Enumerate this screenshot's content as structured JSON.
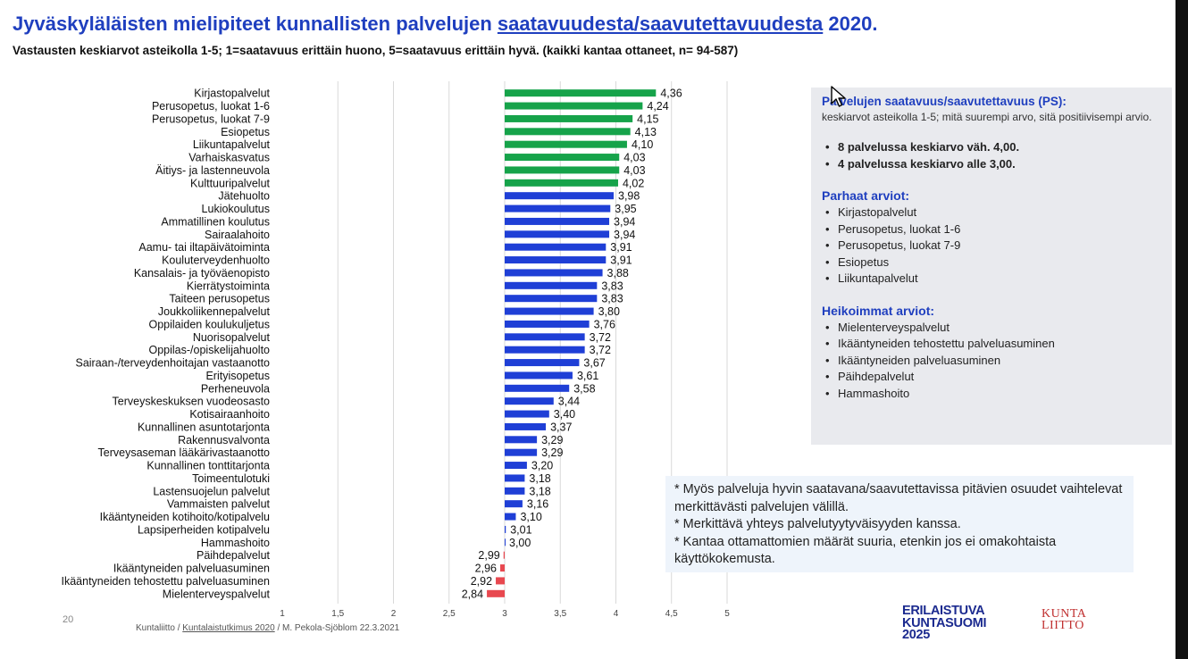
{
  "header": {
    "title_pre": "Jyväskyläläisten mielipiteet kunnallisten palvelujen ",
    "title_ul": "saatavuudesta/saavutettavuudesta",
    "title_post": " 2020.",
    "subtitle": "Vastausten keskiarvot asteikolla 1-5; 1=saatavuus erittäin huono, 5=saatavuus erittäin hyvä. (kaikki kantaa ottaneet, n= 94-587)"
  },
  "colors": {
    "green": "#16a34a",
    "blue": "#1f3fd6",
    "red": "#e8484f",
    "title": "#1f3fbf"
  },
  "chart_data": {
    "type": "bar",
    "orientation": "horizontal",
    "xlim": [
      1,
      5
    ],
    "xticks": [
      "1",
      "1,5",
      "2",
      "2,5",
      "3",
      "3,5",
      "4",
      "4,5",
      "5"
    ],
    "baseline": 3,
    "grid": true,
    "categories": [
      "Kirjastopalvelut",
      "Perusopetus, luokat 1-6",
      "Perusopetus, luokat 7-9",
      "Esiopetus",
      "Liikuntapalvelut",
      "Varhaiskasvatus",
      "Äitiys- ja lastenneuvola",
      "Kulttuuripalvelut",
      "Jätehuolto",
      "Lukiokoulutus",
      "Ammatillinen koulutus",
      "Sairaalahoito",
      "Aamu- tai iltapäivätoiminta",
      "Kouluterveydenhuolto",
      "Kansalais- ja työväenopisto",
      "Kierrätystoiminta",
      "Taiteen perusopetus",
      "Joukkoliikennepalvelut",
      "Oppilaiden koulukuljetus",
      "Nuorisopalvelut",
      "Oppilas-/opiskelijahuolto",
      "Sairaan-/terveydenhoitajan vastaanotto",
      "Erityisopetus",
      "Perheneuvola",
      "Terveyskeskuksen vuodeosasto",
      "Kotisairaanhoito",
      "Kunnallinen asuntotarjonta",
      "Rakennusvalvonta",
      "Terveysaseman lääkärivastaanotto",
      "Kunnallinen tonttitarjonta",
      "Toimeentulotuki",
      "Lastensuojelun palvelut",
      "Vammaisten palvelut",
      "Ikääntyneiden kotihoito/kotipalvelu",
      "Lapsiperheiden kotipalvelu",
      "Hammashoito",
      "Päihdepalvelut",
      "Ikääntyneiden palveluasuminen",
      "Ikääntyneiden tehostettu palveluasuminen",
      "Mielenterveyspalvelut"
    ],
    "values": [
      4.36,
      4.24,
      4.15,
      4.13,
      4.1,
      4.03,
      4.03,
      4.02,
      3.98,
      3.95,
      3.94,
      3.94,
      3.91,
      3.91,
      3.88,
      3.83,
      3.83,
      3.8,
      3.76,
      3.72,
      3.72,
      3.67,
      3.61,
      3.58,
      3.44,
      3.4,
      3.37,
      3.29,
      3.29,
      3.2,
      3.18,
      3.18,
      3.16,
      3.1,
      3.01,
      3.0,
      2.99,
      2.96,
      2.92,
      2.84
    ],
    "value_labels": [
      "4,36",
      "4,24",
      "4,15",
      "4,13",
      "4,10",
      "4,03",
      "4,03",
      "4,02",
      "3,98",
      "3,95",
      "3,94",
      "3,94",
      "3,91",
      "3,91",
      "3,88",
      "3,83",
      "3,83",
      "3,80",
      "3,76",
      "3,72",
      "3,72",
      "3,67",
      "3,61",
      "3,58",
      "3,44",
      "3,40",
      "3,37",
      "3,29",
      "3,29",
      "3,20",
      "3,18",
      "3,18",
      "3,16",
      "3,10",
      "3,01",
      "3,00",
      "2,99",
      "2,96",
      "2,92",
      "2,84"
    ]
  },
  "info": {
    "heading": "Palvelujen saatavuus/saavutettavuus (PS):",
    "sub": "keskiarvot asteikolla 1-5; mitä suurempi arvo, sitä positiivisempi arvio.",
    "key1": "8 palvelussa keskiarvo väh. 4,00.",
    "key2": "4 palvelussa keskiarvo alle 3,00.",
    "best_title": "Parhaat arviot:",
    "best": [
      "Kirjastopalvelut",
      "Perusopetus, luokat 1-6",
      "Perusopetus, luokat 7-9",
      "Esiopetus",
      "Liikuntapalvelut"
    ],
    "worst_title": "Heikoimmat arviot:",
    "worst": [
      "Mielenterveyspalvelut",
      "Ikääntyneiden tehostettu palveluasuminen",
      "Ikääntyneiden palveluasuminen",
      "Päihdepalvelut",
      "Hammashoito"
    ]
  },
  "notes": {
    "line1": "* Myös palveluja hyvin saatavana/saavutettavissa pitävien osuudet vaihtelevat merkittävästi palvelujen välillä.",
    "line2": "* Merkittävä yhteys palvelutyytyväisyyden kanssa.",
    "line3": "* Kantaa ottamattomien määrät suuria, etenkin jos ei omakohtaista käyttökokemusta."
  },
  "footer": {
    "page_number": "20",
    "source_pre": "Kuntaliitto / ",
    "source_link": "Kuntalaistutkimus 2020",
    "source_post": " / M. Pekola-Sjöblom 22.3.2021"
  },
  "logos": {
    "erilaistuva_1": "ERILAISTUVA",
    "erilaistuva_2": "KUNTASUOMI",
    "erilaistuva_3": "2025",
    "kuntaliitto_1": "KUNTA",
    "kuntaliitto_2": "LIITTO"
  }
}
